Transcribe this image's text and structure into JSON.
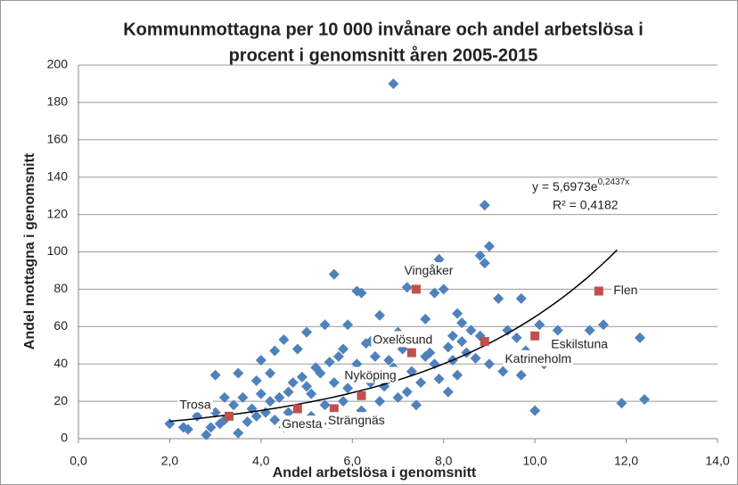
{
  "chart_data": {
    "type": "scatter",
    "title": [
      "Kommunmottagna per 10 000 invånare och andel arbetslösa i",
      "procent i genomsnitt åren 2005-2015"
    ],
    "xlabel": "Andel arbetslösa i genomsnitt",
    "ylabel": "Andel mottagna i genomsnitt",
    "xlim": [
      0,
      14
    ],
    "ylim": [
      0,
      200
    ],
    "xticks": [
      {
        "value": 0,
        "label": "0,0"
      },
      {
        "value": 2,
        "label": "2,0"
      },
      {
        "value": 4,
        "label": "4,0"
      },
      {
        "value": 6,
        "label": "6,0"
      },
      {
        "value": 8,
        "label": "8,0"
      },
      {
        "value": 10,
        "label": "10,0"
      },
      {
        "value": 12,
        "label": "12,0"
      },
      {
        "value": 14,
        "label": "14,0"
      }
    ],
    "yticks": [
      0,
      20,
      40,
      60,
      80,
      100,
      120,
      140,
      160,
      180,
      200
    ],
    "grid": true,
    "series": [
      {
        "color": "#4f81bd",
        "x": [
          6.9,
          8.9,
          9.0,
          8.8,
          8.9,
          7.9,
          5.6,
          6.1,
          7.2,
          8.0,
          7.8,
          9.2,
          9.7,
          10.1,
          11.5,
          12.3,
          12.4,
          11.9,
          10.0,
          6.2,
          6.6,
          5.4,
          7.6,
          8.3,
          8.4,
          9.6,
          9.4,
          10.5,
          11.2,
          9.3,
          9.7,
          9.0,
          8.2,
          7.0,
          5.0,
          4.5,
          4.8,
          4.3,
          3.0,
          3.5,
          3.9,
          4.0,
          2.0,
          2.3,
          2.4,
          2.8,
          3.1,
          3.2,
          3.5,
          3.7,
          3.9,
          4.1,
          4.2,
          4.4,
          4.5,
          4.6,
          4.7,
          4.9,
          5.0,
          5.1,
          5.2,
          5.3,
          5.5,
          5.6,
          5.7,
          5.8,
          5.9,
          6.0,
          6.1,
          6.3,
          6.4,
          6.5,
          6.7,
          6.8,
          6.9,
          7.1,
          7.3,
          7.5,
          7.6,
          7.7,
          7.8,
          7.9,
          8.1,
          8.2,
          8.3,
          8.4,
          8.5,
          8.6,
          8.7,
          2.6,
          3.4,
          3.6,
          3.8,
          4.3,
          4.6,
          4.8,
          5.1,
          5.4,
          5.8,
          6.2,
          6.6,
          7.0,
          7.2,
          7.4,
          6.4,
          6.3,
          5.9,
          6.9,
          7.4,
          8.1,
          3.2,
          3.0,
          2.9,
          5.5,
          4.0,
          4.2,
          9.8,
          8.8,
          10.2
        ],
        "values": [
          190,
          125,
          103,
          98,
          94,
          96,
          88,
          79,
          81,
          80,
          78,
          75,
          75,
          61,
          61,
          54,
          21,
          19,
          15,
          78,
          66,
          61,
          64,
          67,
          62,
          54,
          58,
          58,
          58,
          36,
          34,
          40,
          55,
          57,
          57,
          53,
          48,
          47,
          34,
          35,
          31,
          42,
          8,
          6,
          5,
          2,
          8,
          10,
          3,
          9,
          12,
          14,
          20,
          22,
          6,
          25,
          30,
          33,
          28,
          24,
          38,
          35,
          41,
          30,
          44,
          48,
          27,
          36,
          40,
          34,
          30,
          44,
          28,
          42,
          38,
          48,
          36,
          30,
          44,
          46,
          40,
          32,
          49,
          42,
          34,
          52,
          46,
          58,
          43,
          12,
          18,
          22,
          16,
          10,
          14,
          8,
          12,
          18,
          20,
          15,
          20,
          22,
          25,
          18,
          52,
          51,
          61,
          54,
          53,
          25,
          22,
          14,
          6,
          8,
          24,
          35,
          47,
          55,
          40
        ]
      },
      {
        "color": "#c0504d",
        "labels": [
          "Trosa",
          "Gnesta",
          "Strängnäs",
          "Nyköping",
          "Oxelösund",
          "Vingåker",
          "Katrineholm",
          "Eskilstuna",
          "Flen"
        ],
        "x": [
          3.3,
          4.8,
          5.6,
          6.2,
          7.3,
          7.4,
          8.9,
          10.0,
          11.4
        ],
        "values": [
          12,
          16,
          16,
          23,
          46,
          80,
          52,
          55,
          79
        ]
      }
    ],
    "trendline": {
      "a": 5.6973,
      "b": 0.2437,
      "xrange": [
        2.0,
        11.8
      ],
      "label": "y = 5,6973e",
      "exponent": "0,2437x",
      "r2": "R² = 0,4182"
    }
  }
}
